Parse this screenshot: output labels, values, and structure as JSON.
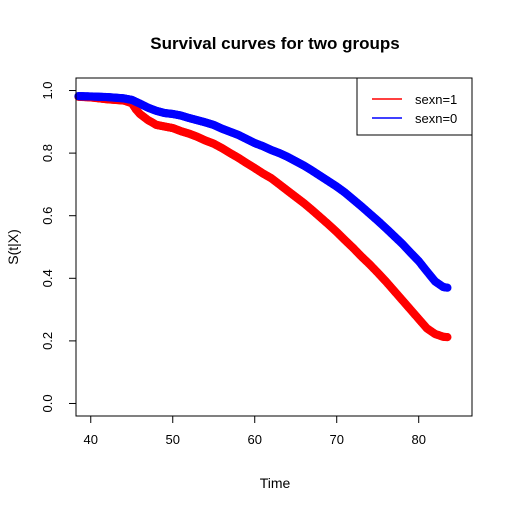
{
  "chart_data": {
    "type": "scatter",
    "title": "Survival curves for two groups",
    "xlabel": "Time",
    "ylabel": "S(t|X)",
    "xlim": [
      38.2,
      86.5
    ],
    "ylim": [
      -0.04,
      1.04
    ],
    "x_ticks": [
      40,
      50,
      60,
      70,
      80
    ],
    "y_ticks": [
      0.0,
      0.2,
      0.4,
      0.6,
      0.8,
      1.0
    ],
    "x_tick_labels": [
      "40",
      "50",
      "60",
      "70",
      "80"
    ],
    "y_tick_labels": [
      "0.0",
      "0.2",
      "0.4",
      "0.6",
      "0.8",
      "1.0"
    ],
    "grid": false,
    "legend_position": "top-right",
    "series": [
      {
        "name": "sexn=1",
        "color": "#ff0000",
        "x": [
          38.5,
          40,
          41,
          42,
          43,
          44,
          45,
          45.5,
          46,
          46.5,
          47,
          47.5,
          48,
          49,
          50,
          51,
          52,
          53,
          54,
          55,
          56,
          57,
          58,
          59,
          60,
          61,
          62,
          63,
          64,
          65,
          66,
          67,
          68,
          69,
          70,
          71,
          72,
          73,
          74,
          75,
          76,
          77,
          78,
          79,
          80,
          81,
          82,
          83,
          83.5
        ],
        "y": [
          0.98,
          0.978,
          0.975,
          0.972,
          0.97,
          0.968,
          0.96,
          0.94,
          0.925,
          0.915,
          0.905,
          0.898,
          0.89,
          0.885,
          0.88,
          0.87,
          0.862,
          0.852,
          0.84,
          0.83,
          0.816,
          0.8,
          0.785,
          0.768,
          0.752,
          0.735,
          0.72,
          0.7,
          0.68,
          0.66,
          0.64,
          0.618,
          0.595,
          0.572,
          0.548,
          0.522,
          0.497,
          0.47,
          0.445,
          0.418,
          0.39,
          0.36,
          0.33,
          0.3,
          0.27,
          0.24,
          0.222,
          0.213,
          0.212
        ]
      },
      {
        "name": "sexn=0",
        "color": "#0000ff",
        "x": [
          38.5,
          40,
          41,
          42,
          43,
          44,
          45,
          46,
          47,
          48,
          49,
          50,
          51,
          52,
          53,
          54,
          55,
          56,
          57,
          58,
          59,
          60,
          61,
          62,
          63,
          64,
          65,
          66,
          67,
          68,
          69,
          70,
          71,
          72,
          73,
          74,
          75,
          76,
          77,
          78,
          79,
          80,
          81,
          82,
          83,
          83.5
        ],
        "y": [
          0.982,
          0.981,
          0.98,
          0.979,
          0.977,
          0.975,
          0.97,
          0.958,
          0.945,
          0.935,
          0.928,
          0.925,
          0.92,
          0.912,
          0.905,
          0.898,
          0.89,
          0.878,
          0.868,
          0.858,
          0.845,
          0.832,
          0.822,
          0.81,
          0.8,
          0.788,
          0.774,
          0.76,
          0.744,
          0.727,
          0.71,
          0.693,
          0.674,
          0.652,
          0.63,
          0.607,
          0.584,
          0.56,
          0.535,
          0.51,
          0.482,
          0.455,
          0.422,
          0.39,
          0.372,
          0.37
        ]
      }
    ]
  }
}
